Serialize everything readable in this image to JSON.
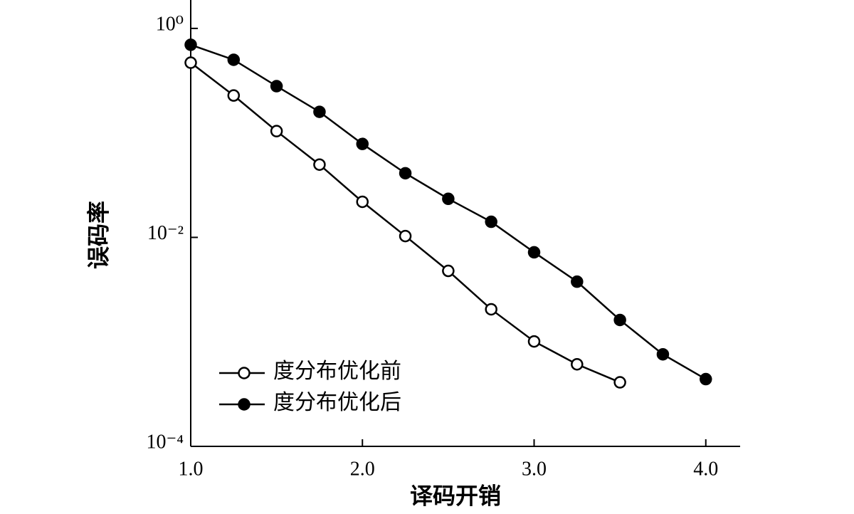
{
  "chart_data": {
    "type": "line",
    "xlabel": "译码开销",
    "ylabel": "误码率",
    "x": [
      1.0,
      1.25,
      1.5,
      1.75,
      2.0,
      2.25,
      2.5,
      2.75,
      3.0,
      3.25,
      3.5,
      3.75,
      4.0
    ],
    "series": [
      {
        "name": "度分布优化前",
        "color": "#000000",
        "marker": "open-circle",
        "values": [
          0.47,
          0.228,
          0.104,
          0.0497,
          0.0219,
          0.0103,
          0.00478,
          0.00205,
          0.00101,
          0.00061,
          0.00041,
          null,
          null
        ]
      },
      {
        "name": "度分布优化后",
        "color": "#000000",
        "marker": "filled-circle",
        "values": [
          0.697,
          0.501,
          0.28,
          0.159,
          0.0784,
          0.0411,
          0.0234,
          0.0141,
          0.0072,
          0.00377,
          0.00162,
          0.00076,
          0.00044
        ]
      }
    ],
    "xlim": [
      1.0,
      4.2
    ],
    "xticks": [
      {
        "value": 1,
        "label": "1.0"
      },
      {
        "value": 2,
        "label": "2.0"
      },
      {
        "value": 3,
        "label": "3.0"
      },
      {
        "value": 4,
        "label": "4.0"
      }
    ],
    "ylim": [
      0.0001,
      1.87
    ],
    "yticks": [
      {
        "value": 1,
        "label": "10⁰"
      },
      {
        "value": 0.01,
        "label": "10⁻²"
      },
      {
        "value": 0.0001,
        "label": "10⁻⁴"
      }
    ],
    "yscale": "log",
    "grid": false,
    "legend": "lower left"
  }
}
